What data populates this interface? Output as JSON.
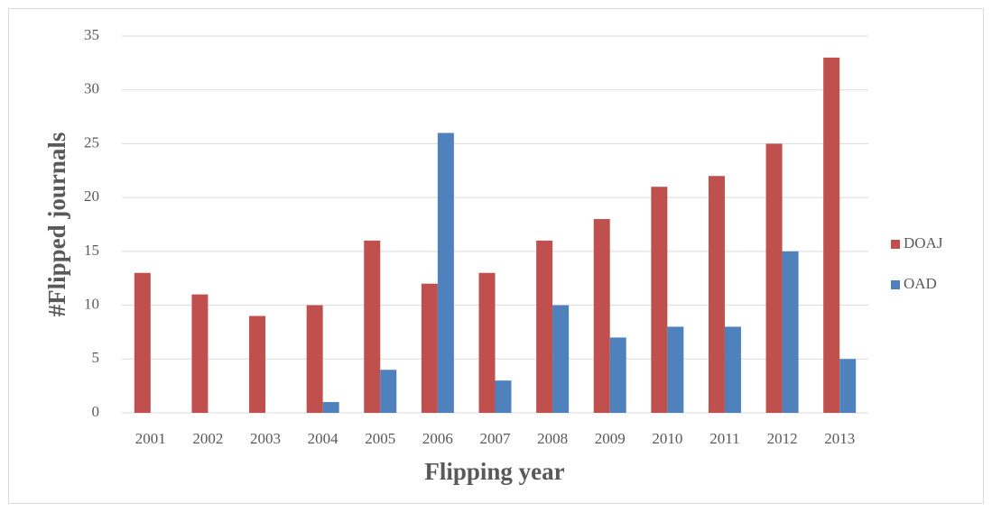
{
  "chart_data": {
    "type": "bar",
    "x_label": "Flipping year",
    "y_label": "#Flipped journals",
    "categories": [
      "2001",
      "2002",
      "2003",
      "2004",
      "2005",
      "2006",
      "2007",
      "2008",
      "2009",
      "2010",
      "2011",
      "2012",
      "2013"
    ],
    "series": [
      {
        "name": "DOAJ",
        "color": "#c0504d",
        "values": [
          13,
          11,
          9,
          10,
          16,
          12,
          13,
          16,
          18,
          21,
          22,
          25,
          33
        ]
      },
      {
        "name": "OAD",
        "color": "#4f81bd",
        "values": [
          0,
          0,
          0,
          1,
          4,
          26,
          3,
          10,
          7,
          8,
          8,
          15,
          5
        ]
      }
    ],
    "ylim": [
      0,
      35
    ],
    "yticks": [
      0,
      5,
      10,
      15,
      20,
      25,
      30,
      35
    ],
    "grid": true,
    "legend": "right"
  }
}
